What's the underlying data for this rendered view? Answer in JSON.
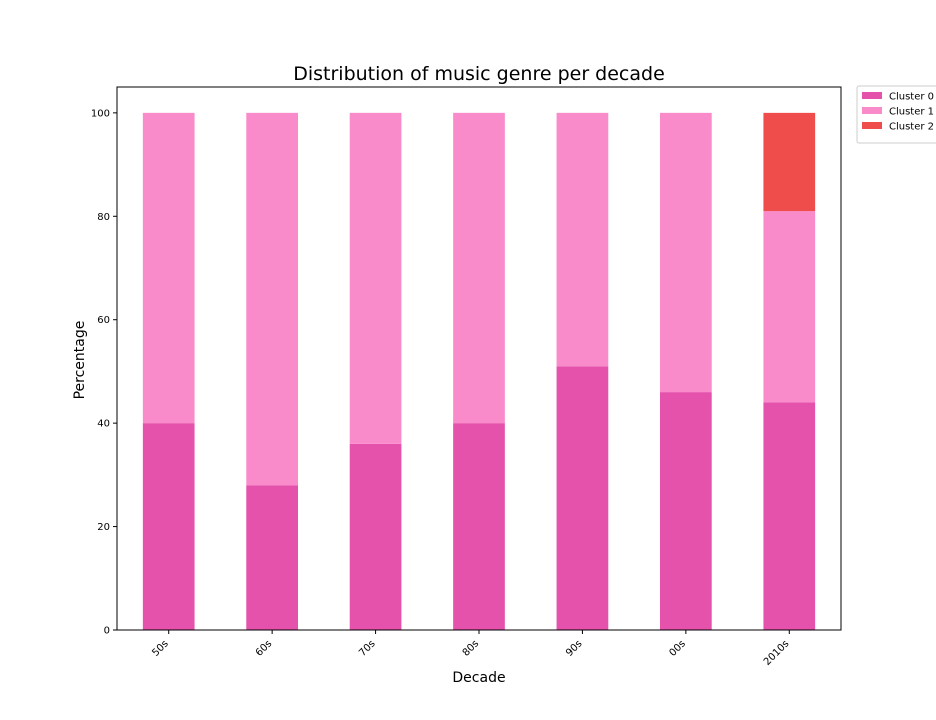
{
  "chart_data": {
    "type": "bar",
    "stacked": true,
    "title": "Distribution of music genre per decade",
    "xlabel": "Decade",
    "ylabel": "Percentage",
    "categories": [
      "50s",
      "60s",
      "70s",
      "80s",
      "90s",
      "00s",
      "2010s"
    ],
    "series": [
      {
        "name": "Cluster 0",
        "color": "#e452ac",
        "values": [
          40,
          28,
          36,
          40,
          51,
          46,
          44
        ]
      },
      {
        "name": "Cluster 1",
        "color": "#f98bcb",
        "values": [
          60,
          72,
          64,
          60,
          49,
          54,
          37
        ]
      },
      {
        "name": "Cluster 2",
        "color": "#ef4c4c",
        "values": [
          0,
          0,
          0,
          0,
          0,
          0,
          19
        ]
      }
    ],
    "ylim": [
      0,
      105
    ],
    "yticks": [
      0,
      20,
      40,
      60,
      80,
      100
    ],
    "legend_position": "outside top-right",
    "grid": false
  }
}
